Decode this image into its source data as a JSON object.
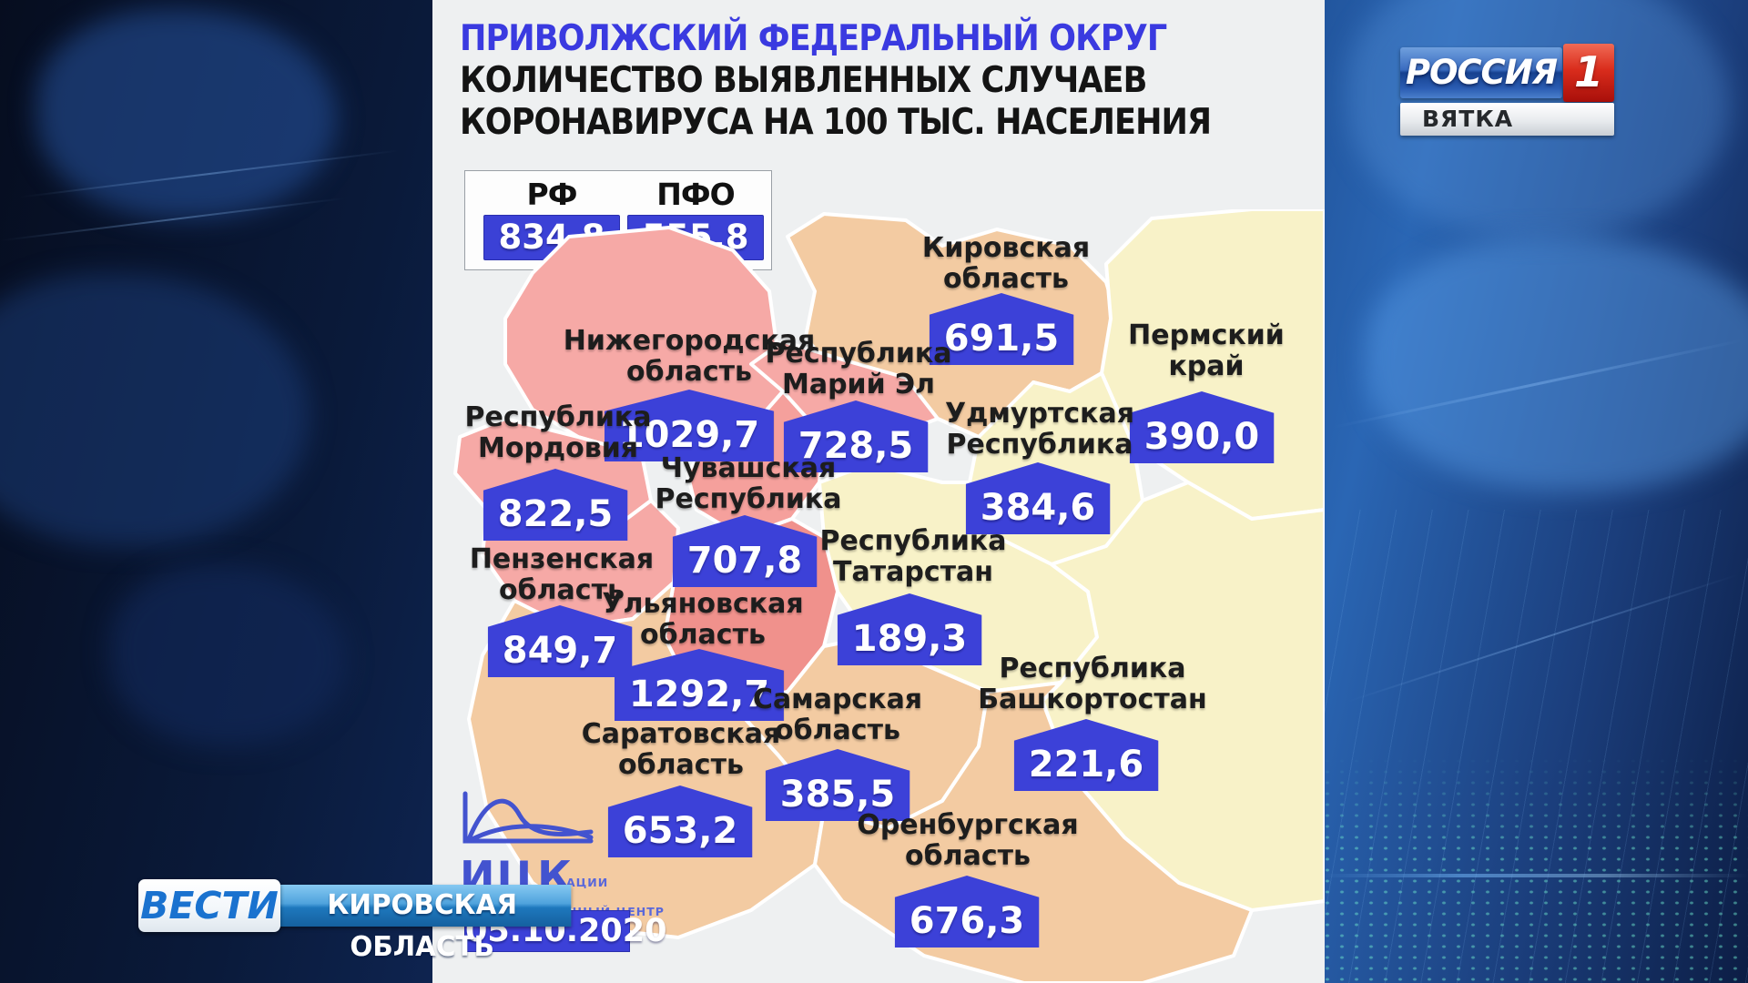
{
  "panel": {
    "title_line1": "ПРИВОЛЖСКИЙ ФЕДЕРАЛЬНЫЙ ОКРУГ",
    "title_line2": "КОЛИЧЕСТВО ВЫЯВЛЕННЫХ СЛУЧАЕВ",
    "title_line3": "КОРОНАВИРУСА НА 100 ТЫС. НАСЕЛЕНИЯ",
    "summary": {
      "rf_label": "РФ",
      "rf_value": "834,8",
      "pfo_label": "ПФО",
      "pfo_value": "555,8"
    },
    "date": "05.10.2020",
    "source_logo": {
      "abbr": "ИЦК",
      "subtext_line1": "ИНФОРМАЦИОННЫЙ ЦЕНТР",
      "subtext_line2_visible_fragment": "АЦИИ"
    }
  },
  "branding": {
    "channel_name": "РОССИЯ",
    "channel_number": "1",
    "station": "ВЯТКА",
    "program": "ВЕСТИ",
    "region_banner": "КИРОВСКАЯ ОБЛАСТЬ"
  },
  "palette": {
    "badge_blue": "#3c41d8",
    "title_blue": "#3a3ae0",
    "region_pink": "#f6a9a6",
    "region_salmon": "#f0918c",
    "region_tan": "#f3cba2",
    "region_yellow": "#f8f2c8"
  },
  "chart_data": {
    "type": "table",
    "title": "ПРИВОЛЖСКИЙ ФЕДЕРАЛЬНЫЙ ОКРУГ — КОЛИЧЕСТВО ВЫЯВЛЕННЫХ СЛУЧАЕВ КОРОНАВИРУСА НА 100 ТЫС. НАСЕЛЕНИЯ",
    "reference": [
      {
        "label": "РФ",
        "value": 834.8
      },
      {
        "label": "ПФО",
        "value": 555.8
      }
    ],
    "regions": [
      {
        "id": "kirovskaya",
        "name_lines": [
          "Кировская",
          "область"
        ],
        "display_value": "691,5",
        "value": 691.5
      },
      {
        "id": "permsky",
        "name_lines": [
          "Пермский",
          "край"
        ],
        "display_value": "390,0",
        "value": 390.0
      },
      {
        "id": "nizhegorodskaya",
        "name_lines": [
          "Нижегородская",
          "область"
        ],
        "display_value": "1029,7",
        "value": 1029.7
      },
      {
        "id": "mariy_el",
        "name_lines": [
          "Республика",
          "Марий Эл"
        ],
        "display_value": "728,5",
        "value": 728.5
      },
      {
        "id": "udmurtskaya",
        "name_lines": [
          "Удмуртская",
          "Республика"
        ],
        "display_value": "384,6",
        "value": 384.6
      },
      {
        "id": "mordovia",
        "name_lines": [
          "Республика",
          "Мордовия"
        ],
        "display_value": "822,5",
        "value": 822.5
      },
      {
        "id": "chuvashskaya",
        "name_lines": [
          "Чувашская",
          "Республика"
        ],
        "display_value": "707,8",
        "value": 707.8
      },
      {
        "id": "penzenskaya",
        "name_lines": [
          "Пензенская",
          "область"
        ],
        "display_value": "849,7",
        "value": 849.7
      },
      {
        "id": "tatarstan",
        "name_lines": [
          "Республика",
          "Татарстан"
        ],
        "display_value": "189,3",
        "value": 189.3
      },
      {
        "id": "ulyanovskaya",
        "name_lines": [
          "Ульяновская",
          "область"
        ],
        "display_value": "1292,7",
        "value": 1292.7
      },
      {
        "id": "samarskaya",
        "name_lines": [
          "Самарская",
          "область"
        ],
        "display_value": "385,5",
        "value": 385.5
      },
      {
        "id": "bashkortostan",
        "name_lines": [
          "Республика",
          "Башкортостан"
        ],
        "display_value": "221,6",
        "value": 221.6
      },
      {
        "id": "saratovskaya",
        "name_lines": [
          "Саратовская",
          "область"
        ],
        "display_value": "653,2",
        "value": 653.2
      },
      {
        "id": "orenburgskaya",
        "name_lines": [
          "Оренбургская",
          "область"
        ],
        "display_value": "676,3",
        "value": 676.3
      }
    ]
  }
}
